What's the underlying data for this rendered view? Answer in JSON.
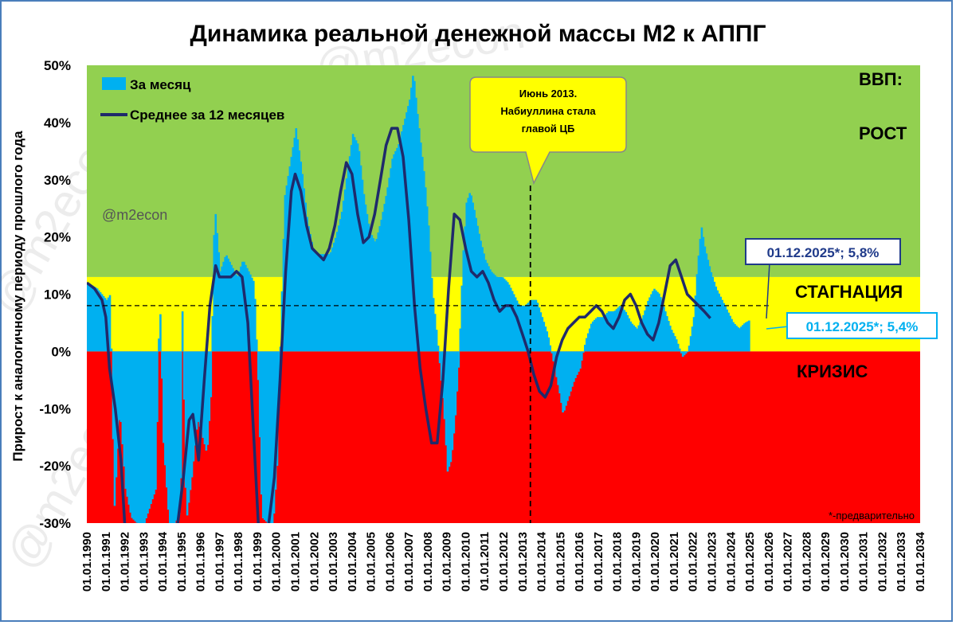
{
  "title": "Динамика реальной денежной массы М2 к АППГ",
  "ylabel": "Прирост к аналогичному периоду прошлого года",
  "watermark": "@m2econ",
  "footnote": "*-предварительно",
  "colors": {
    "growth": "#92d050",
    "stagnation": "#ffff00",
    "crisis": "#ff0000",
    "monthly": "#00b0f0",
    "avg": "#1f2a6b",
    "callout_dark": "#1f3a8a",
    "callout_light": "#00b0f0",
    "note_bg": "#ffff00"
  },
  "legend": {
    "monthly_label": "За месяц",
    "avg_label": "Среднее за 12 месяцев"
  },
  "zones": {
    "growth_label_1": "ВВП:",
    "growth_label_2": "РОСТ",
    "stagnation_label": "СТАГНАЦИЯ",
    "crisis_label": "КРИЗИС"
  },
  "annotation": {
    "line1": "Июнь 2013.",
    "line2": "Набиуллина стала",
    "line3": "главой ЦБ",
    "date": 2013.42
  },
  "callouts": {
    "avg_text": "01.12.2025*; 5,8%",
    "monthly_text": "01.12.2025*; 5,4%"
  },
  "chart_data": {
    "type": "bar",
    "title": "Динамика реальной денежной массы М2 к АППГ",
    "xlabel": "",
    "ylabel": "Прирост к аналогичному периоду прошлого года",
    "x_range": [
      1990,
      2034
    ],
    "ylim": [
      -30,
      50
    ],
    "y_ticks": [
      -30,
      -20,
      -10,
      0,
      10,
      20,
      30,
      40,
      50
    ],
    "y_tick_labels": [
      "-30%",
      "-20%",
      "-10%",
      "0%",
      "10%",
      "20%",
      "30%",
      "40%",
      "50%"
    ],
    "x_tick_labels": [
      "01.01.1990",
      "01.01.1991",
      "01.01.1992",
      "01.01.1993",
      "01.01.1994",
      "01.01.1995",
      "01.01.1996",
      "01.01.1997",
      "01.01.1998",
      "01.01.1999",
      "01.01.2000",
      "01.01.2001",
      "01.01.2002",
      "01.01.2003",
      "01.01.2004",
      "01.01.2005",
      "01.01.2006",
      "01.01.2007",
      "01.01.2008",
      "01.01.2009",
      "01.01.2010",
      "01.01.2011",
      "01.01.2012",
      "01.01.2013",
      "01.01.2014",
      "01.01.2015",
      "01.01.2016",
      "01.01.2017",
      "01.01.2018",
      "01.01.2019",
      "01.01.2020",
      "01.01.2021",
      "01.01.2022",
      "01.01.2023",
      "01.01.2024",
      "01.01.2025",
      "01.01.2026",
      "01.01.2027",
      "01.01.2028",
      "01.01.2029",
      "01.01.2030",
      "01.01.2031",
      "01.01.2032",
      "01.01.2033",
      "01.01.2034"
    ],
    "zones": [
      {
        "name": "РОСТ",
        "from": 13,
        "to": 50
      },
      {
        "name": "СТАГНАЦИЯ",
        "from": 0,
        "to": 13
      },
      {
        "name": "КРИЗИС",
        "from": -30,
        "to": 0
      }
    ],
    "reference_line": 8,
    "series": [
      {
        "name": "За месяц",
        "points": [
          [
            1990.0,
            12
          ],
          [
            1990.5,
            11
          ],
          [
            1991.0,
            9
          ],
          [
            1991.2,
            10
          ],
          [
            1991.4,
            -28
          ],
          [
            1991.7,
            -10
          ],
          [
            1992.0,
            -24
          ],
          [
            1992.3,
            -29
          ],
          [
            1992.6,
            -30
          ],
          [
            1993.0,
            -30
          ],
          [
            1993.3,
            -27
          ],
          [
            1993.6,
            -24
          ],
          [
            1993.8,
            11
          ],
          [
            1994.0,
            -16
          ],
          [
            1994.3,
            -30
          ],
          [
            1994.6,
            -30
          ],
          [
            1994.9,
            -28
          ],
          [
            1995.0,
            7
          ],
          [
            1995.2,
            -30
          ],
          [
            1995.5,
            -22
          ],
          [
            1995.8,
            -12
          ],
          [
            1996.0,
            -14
          ],
          [
            1996.3,
            -18
          ],
          [
            1996.5,
            -8
          ],
          [
            1996.7,
            26
          ],
          [
            1997.0,
            14
          ],
          [
            1997.3,
            17
          ],
          [
            1997.6,
            15
          ],
          [
            1997.9,
            13
          ],
          [
            1998.2,
            16
          ],
          [
            1998.5,
            14
          ],
          [
            1998.8,
            12
          ],
          [
            1999.0,
            -5
          ],
          [
            1999.2,
            -29
          ],
          [
            1999.5,
            -30
          ],
          [
            1999.8,
            -30
          ],
          [
            2000.0,
            -20
          ],
          [
            2000.2,
            5
          ],
          [
            2000.4,
            27
          ],
          [
            2000.7,
            33
          ],
          [
            2001.0,
            39
          ],
          [
            2001.3,
            32
          ],
          [
            2001.6,
            23
          ],
          [
            2001.9,
            18
          ],
          [
            2002.2,
            17
          ],
          [
            2002.5,
            17
          ],
          [
            2002.8,
            17
          ],
          [
            2003.1,
            20
          ],
          [
            2003.4,
            24
          ],
          [
            2003.7,
            31
          ],
          [
            2004.0,
            38
          ],
          [
            2004.3,
            36
          ],
          [
            2004.6,
            27
          ],
          [
            2004.9,
            21
          ],
          [
            2005.2,
            19
          ],
          [
            2005.5,
            23
          ],
          [
            2005.8,
            28
          ],
          [
            2006.1,
            34
          ],
          [
            2006.4,
            36
          ],
          [
            2006.7,
            40
          ],
          [
            2007.0,
            44
          ],
          [
            2007.2,
            49
          ],
          [
            2007.4,
            42
          ],
          [
            2007.6,
            36
          ],
          [
            2007.8,
            30
          ],
          [
            2008.0,
            22
          ],
          [
            2008.2,
            11
          ],
          [
            2008.5,
            1
          ],
          [
            2008.8,
            -10
          ],
          [
            2009.0,
            -21
          ],
          [
            2009.2,
            -19
          ],
          [
            2009.4,
            -12
          ],
          [
            2009.6,
            -2
          ],
          [
            2009.8,
            16
          ],
          [
            2010.0,
            26
          ],
          [
            2010.2,
            28
          ],
          [
            2010.4,
            25
          ],
          [
            2010.7,
            20
          ],
          [
            2011.0,
            16
          ],
          [
            2011.3,
            14
          ],
          [
            2011.6,
            13
          ],
          [
            2011.9,
            13
          ],
          [
            2012.2,
            12
          ],
          [
            2012.5,
            10
          ],
          [
            2012.8,
            8
          ],
          [
            2013.1,
            8
          ],
          [
            2013.4,
            9
          ],
          [
            2013.7,
            9
          ],
          [
            2014.0,
            6
          ],
          [
            2014.3,
            3
          ],
          [
            2014.6,
            -2
          ],
          [
            2014.9,
            -7
          ],
          [
            2015.1,
            -11
          ],
          [
            2015.4,
            -8
          ],
          [
            2015.7,
            -5
          ],
          [
            2016.0,
            -3
          ],
          [
            2016.3,
            2
          ],
          [
            2016.6,
            5
          ],
          [
            2016.9,
            6
          ],
          [
            2017.2,
            6
          ],
          [
            2017.5,
            7
          ],
          [
            2017.8,
            7
          ],
          [
            2018.1,
            8
          ],
          [
            2018.4,
            7
          ],
          [
            2018.7,
            5
          ],
          [
            2019.0,
            4
          ],
          [
            2019.3,
            6
          ],
          [
            2019.6,
            9
          ],
          [
            2019.9,
            11
          ],
          [
            2020.2,
            10
          ],
          [
            2020.5,
            7
          ],
          [
            2020.8,
            4
          ],
          [
            2021.1,
            2
          ],
          [
            2021.4,
            -1
          ],
          [
            2021.7,
            0
          ],
          [
            2022.0,
            6
          ],
          [
            2022.2,
            15
          ],
          [
            2022.4,
            22
          ],
          [
            2022.6,
            18
          ],
          [
            2022.9,
            14
          ],
          [
            2023.2,
            11
          ],
          [
            2023.5,
            9
          ],
          [
            2023.8,
            7
          ],
          [
            2024.1,
            5
          ],
          [
            2024.4,
            4
          ],
          [
            2024.7,
            5
          ],
          [
            2024.92,
            5.4
          ]
        ]
      },
      {
        "name": "Среднее за 12 месяцев",
        "points": [
          [
            1990.0,
            12
          ],
          [
            1990.4,
            11
          ],
          [
            1990.8,
            9
          ],
          [
            1991.0,
            6
          ],
          [
            1991.2,
            -3
          ],
          [
            1991.5,
            -10
          ],
          [
            1991.8,
            -19
          ],
          [
            1992.0,
            -30
          ],
          [
            1992.4,
            -33
          ],
          [
            1993.0,
            -33
          ],
          [
            1993.6,
            -33
          ],
          [
            1994.0,
            -33
          ],
          [
            1994.4,
            -33
          ],
          [
            1994.8,
            -30
          ],
          [
            1995.1,
            -22
          ],
          [
            1995.4,
            -12
          ],
          [
            1995.6,
            -11
          ],
          [
            1995.9,
            -19
          ],
          [
            1996.2,
            -5
          ],
          [
            1996.5,
            8
          ],
          [
            1996.8,
            15
          ],
          [
            1997.0,
            13
          ],
          [
            1997.3,
            13
          ],
          [
            1997.6,
            13
          ],
          [
            1997.9,
            14
          ],
          [
            1998.2,
            13
          ],
          [
            1998.5,
            5
          ],
          [
            1998.8,
            -14
          ],
          [
            1999.1,
            -33
          ],
          [
            1999.5,
            -33
          ],
          [
            1999.9,
            -22
          ],
          [
            2000.2,
            -5
          ],
          [
            2000.5,
            14
          ],
          [
            2000.8,
            28
          ],
          [
            2001.0,
            31
          ],
          [
            2001.3,
            28
          ],
          [
            2001.6,
            22
          ],
          [
            2001.9,
            18
          ],
          [
            2002.2,
            17
          ],
          [
            2002.5,
            16
          ],
          [
            2002.8,
            18
          ],
          [
            2003.1,
            22
          ],
          [
            2003.4,
            28
          ],
          [
            2003.7,
            33
          ],
          [
            2004.0,
            31
          ],
          [
            2004.3,
            24
          ],
          [
            2004.6,
            19
          ],
          [
            2004.9,
            20
          ],
          [
            2005.2,
            24
          ],
          [
            2005.5,
            30
          ],
          [
            2005.8,
            36
          ],
          [
            2006.1,
            39
          ],
          [
            2006.4,
            39
          ],
          [
            2006.7,
            34
          ],
          [
            2007.0,
            23
          ],
          [
            2007.3,
            8
          ],
          [
            2007.6,
            -3
          ],
          [
            2007.9,
            -10
          ],
          [
            2008.2,
            -16
          ],
          [
            2008.5,
            -16
          ],
          [
            2008.8,
            -5
          ],
          [
            2009.1,
            11
          ],
          [
            2009.4,
            24
          ],
          [
            2009.7,
            23
          ],
          [
            2010.0,
            18
          ],
          [
            2010.3,
            14
          ],
          [
            2010.6,
            13
          ],
          [
            2010.9,
            14
          ],
          [
            2011.2,
            12
          ],
          [
            2011.5,
            9
          ],
          [
            2011.8,
            7
          ],
          [
            2012.1,
            8
          ],
          [
            2012.4,
            8
          ],
          [
            2012.7,
            6
          ],
          [
            2013.0,
            3
          ],
          [
            2013.3,
            0
          ],
          [
            2013.6,
            -4
          ],
          [
            2013.9,
            -7
          ],
          [
            2014.2,
            -8
          ],
          [
            2014.5,
            -6
          ],
          [
            2014.8,
            -1
          ],
          [
            2015.1,
            2
          ],
          [
            2015.4,
            4
          ],
          [
            2015.7,
            5
          ],
          [
            2016.0,
            6
          ],
          [
            2016.3,
            6
          ],
          [
            2016.6,
            7
          ],
          [
            2016.9,
            8
          ],
          [
            2017.2,
            7
          ],
          [
            2017.5,
            5
          ],
          [
            2017.8,
            4
          ],
          [
            2018.1,
            6
          ],
          [
            2018.4,
            9
          ],
          [
            2018.7,
            10
          ],
          [
            2019.0,
            8
          ],
          [
            2019.3,
            5
          ],
          [
            2019.6,
            3
          ],
          [
            2019.9,
            2
          ],
          [
            2020.2,
            5
          ],
          [
            2020.5,
            10
          ],
          [
            2020.8,
            15
          ],
          [
            2021.1,
            16
          ],
          [
            2021.4,
            13
          ],
          [
            2021.7,
            10
          ],
          [
            2022.0,
            9
          ],
          [
            2022.3,
            8
          ],
          [
            2022.6,
            7
          ],
          [
            2022.92,
            5.8
          ]
        ]
      }
    ]
  }
}
